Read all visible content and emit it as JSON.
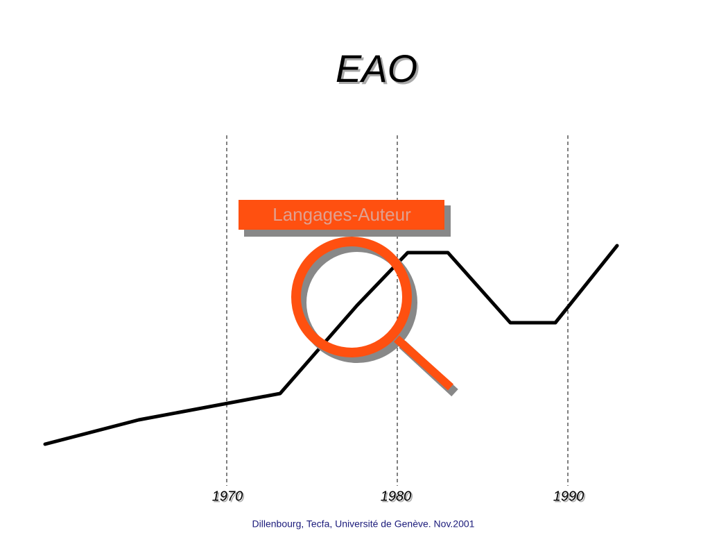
{
  "header": {
    "title": "EAO"
  },
  "callout": {
    "label": "Langages-Auteur"
  },
  "timeline": {
    "labels": [
      "1970",
      "1980",
      "1990"
    ]
  },
  "footer": {
    "text": "Dillenbourg, Tecfa, Université de Genève. Nov.2001"
  }
}
